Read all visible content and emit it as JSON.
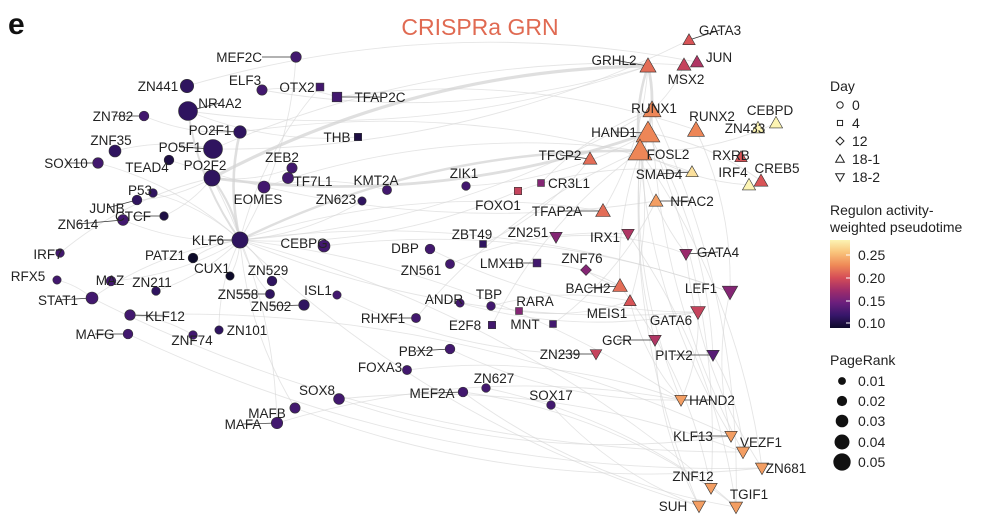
{
  "panel_letter": "e",
  "title": "CRISPRa GRN",
  "colors": {
    "title": "#e06a52",
    "edge": "#d4d4d4",
    "node_stroke": "#333333"
  },
  "legend": {
    "day": {
      "title": "Day",
      "items": [
        {
          "label": "0",
          "shape": "circle"
        },
        {
          "label": "4",
          "shape": "square"
        },
        {
          "label": "12",
          "shape": "diamond"
        },
        {
          "label": "18-1",
          "shape": "triangle-up"
        },
        {
          "label": "18-2",
          "shape": "triangle-down"
        }
      ]
    },
    "activity": {
      "title_line1": "Regulon activity-",
      "title_line2": "weighted pseudotime",
      "ticks": [
        "0.25",
        "0.20",
        "0.15",
        "0.10"
      ],
      "colormap": [
        "#fcf4b3",
        "#f9c37a",
        "#ef8a57",
        "#d54d57",
        "#a02d6a",
        "#6b1f7d",
        "#36166a",
        "#0d0a2a"
      ]
    },
    "pagerank": {
      "title": "PageRank",
      "items": [
        "0.01",
        "0.02",
        "0.03",
        "0.04",
        "0.05"
      ]
    }
  },
  "nodes": [
    {
      "label": "MEF2C",
      "shape": "circle",
      "value": 0.13,
      "pagerank": 0.015
    },
    {
      "label": "ELF3",
      "shape": "circle",
      "value": 0.13,
      "pagerank": 0.014
    },
    {
      "label": "OTX2",
      "shape": "square",
      "value": 0.13,
      "pagerank": 0.012
    },
    {
      "label": "TFAP2C",
      "shape": "square",
      "value": 0.13,
      "pagerank": 0.02
    },
    {
      "label": "ZN441",
      "shape": "circle",
      "value": 0.12,
      "pagerank": 0.025
    },
    {
      "label": "NR4A2",
      "shape": "circle",
      "value": 0.12,
      "pagerank": 0.045
    },
    {
      "label": "ZN782",
      "shape": "circle",
      "value": 0.13,
      "pagerank": 0.012
    },
    {
      "label": "PO2F1",
      "shape": "circle",
      "value": 0.12,
      "pagerank": 0.022
    },
    {
      "label": "PO5F1",
      "shape": "circle",
      "value": 0.12,
      "pagerank": 0.045
    },
    {
      "label": "ZNF35",
      "shape": "circle",
      "value": 0.12,
      "pagerank": 0.02
    },
    {
      "label": "PO2F2",
      "shape": "circle",
      "value": 0.12,
      "pagerank": 0.035
    },
    {
      "label": "SOX10",
      "shape": "circle",
      "value": 0.13,
      "pagerank": 0.015
    },
    {
      "label": "TEAD4",
      "shape": "circle",
      "value": 0.11,
      "pagerank": 0.012
    },
    {
      "label": "THB",
      "shape": "square",
      "value": 0.11,
      "pagerank": 0.01
    },
    {
      "label": "ZEB2",
      "shape": "circle",
      "value": 0.13,
      "pagerank": 0.014
    },
    {
      "label": "TF7L1",
      "shape": "circle",
      "value": 0.13,
      "pagerank": 0.017
    },
    {
      "label": "P53",
      "shape": "circle",
      "value": 0.12,
      "pagerank": 0.008
    },
    {
      "label": "EOMES",
      "shape": "circle",
      "value": 0.13,
      "pagerank": 0.02
    },
    {
      "label": "KMT2A",
      "shape": "circle",
      "value": 0.13,
      "pagerank": 0.01
    },
    {
      "label": "ZN623",
      "shape": "circle",
      "value": 0.12,
      "pagerank": 0.007
    },
    {
      "label": "JUNB",
      "shape": "circle",
      "value": 0.12,
      "pagerank": 0.012
    },
    {
      "label": "ZN614",
      "shape": "circle",
      "value": 0.13,
      "pagerank": 0.016
    },
    {
      "label": "CTCF",
      "shape": "circle",
      "value": 0.11,
      "pagerank": 0.008
    },
    {
      "label": "ZIK1",
      "shape": "circle",
      "value": 0.13,
      "pagerank": 0.008
    },
    {
      "label": "FOXO1",
      "shape": "square",
      "value": 0.19,
      "pagerank": 0.01
    },
    {
      "label": "CR3L1",
      "shape": "square",
      "value": 0.16,
      "pagerank": 0.008
    },
    {
      "label": "TFCP2",
      "shape": "triangle-up",
      "value": 0.21,
      "pagerank": 0.014
    },
    {
      "label": "KLF6",
      "shape": "circle",
      "value": 0.12,
      "pagerank": 0.035
    },
    {
      "label": "IRF7",
      "shape": "circle",
      "value": 0.13,
      "pagerank": 0.008
    },
    {
      "label": "PATZ1",
      "shape": "circle",
      "value": 0.1,
      "pagerank": 0.012
    },
    {
      "label": "CEBPG",
      "shape": "circle",
      "value": 0.13,
      "pagerank": 0.02
    },
    {
      "label": "DBP",
      "shape": "circle",
      "value": 0.13,
      "pagerank": 0.012
    },
    {
      "label": "ZBT49",
      "shape": "square",
      "value": 0.12,
      "pagerank": 0.008
    },
    {
      "label": "ZN251",
      "shape": "triangle-down",
      "value": 0.16,
      "pagerank": 0.01
    },
    {
      "label": "TFAP2A",
      "shape": "triangle-up",
      "value": 0.21,
      "pagerank": 0.016
    },
    {
      "label": "RFX5",
      "shape": "circle",
      "value": 0.13,
      "pagerank": 0.007
    },
    {
      "label": "CUX1",
      "shape": "circle",
      "value": 0.1,
      "pagerank": 0.007
    },
    {
      "label": "ZN529",
      "shape": "circle",
      "value": 0.12,
      "pagerank": 0.012
    },
    {
      "label": "ZN561",
      "shape": "circle",
      "value": 0.13,
      "pagerank": 0.01
    },
    {
      "label": "LMX1B",
      "shape": "square",
      "value": 0.13,
      "pagerank": 0.012
    },
    {
      "label": "ZNF76",
      "shape": "diamond",
      "value": 0.16,
      "pagerank": 0.008
    },
    {
      "label": "IRX1",
      "shape": "triangle-down",
      "value": 0.18,
      "pagerank": 0.01
    },
    {
      "label": "GATA4",
      "shape": "triangle-down",
      "value": 0.17,
      "pagerank": 0.01
    },
    {
      "label": "MAZ",
      "shape": "circle",
      "value": 0.13,
      "pagerank": 0.012
    },
    {
      "label": "ZN211",
      "shape": "circle",
      "value": 0.12,
      "pagerank": 0.008
    },
    {
      "label": "STAT1",
      "shape": "circle",
      "value": 0.13,
      "pagerank": 0.02
    },
    {
      "label": "ZN558",
      "shape": "circle",
      "value": 0.12,
      "pagerank": 0.01
    },
    {
      "label": "ISL1",
      "shape": "circle",
      "value": 0.13,
      "pagerank": 0.007
    },
    {
      "label": "TBP",
      "shape": "circle",
      "value": 0.13,
      "pagerank": 0.008
    },
    {
      "label": "RARA",
      "shape": "square",
      "value": 0.16,
      "pagerank": 0.008
    },
    {
      "label": "BACH2",
      "shape": "triangle-up",
      "value": 0.21,
      "pagerank": 0.016
    },
    {
      "label": "LEF1",
      "shape": "triangle-down",
      "value": 0.16,
      "pagerank": 0.018
    },
    {
      "label": "KLF12",
      "shape": "circle",
      "value": 0.13,
      "pagerank": 0.015
    },
    {
      "label": "ZN502",
      "shape": "circle",
      "value": 0.12,
      "pagerank": 0.015
    },
    {
      "label": "RHXF1",
      "shape": "circle",
      "value": 0.13,
      "pagerank": 0.01
    },
    {
      "label": "ANDR",
      "shape": "circle",
      "value": 0.13,
      "pagerank": 0.007
    },
    {
      "label": "MEIS1",
      "shape": "triangle-up",
      "value": 0.2,
      "pagerank": 0.01
    },
    {
      "label": "MAFG",
      "shape": "circle",
      "value": 0.13,
      "pagerank": 0.012
    },
    {
      "label": "ZN101",
      "shape": "circle",
      "value": 0.12,
      "pagerank": 0.007
    },
    {
      "label": "E2F8",
      "shape": "square",
      "value": 0.13,
      "pagerank": 0.01
    },
    {
      "label": "MNT",
      "shape": "square",
      "value": 0.13,
      "pagerank": 0.008
    },
    {
      "label": "GATA6",
      "shape": "triangle-down",
      "value": 0.19,
      "pagerank": 0.016
    },
    {
      "label": "ZNF74",
      "shape": "circle",
      "value": 0.13,
      "pagerank": 0.008
    },
    {
      "label": "GCR",
      "shape": "triangle-down",
      "value": 0.18,
      "pagerank": 0.01
    },
    {
      "label": "PITX2",
      "shape": "triangle-down",
      "value": 0.14,
      "pagerank": 0.01
    },
    {
      "label": "PBX2",
      "shape": "circle",
      "value": 0.13,
      "pagerank": 0.012
    },
    {
      "label": "ZN239",
      "shape": "triangle-down",
      "value": 0.19,
      "pagerank": 0.008
    },
    {
      "label": "FOXA3",
      "shape": "circle",
      "value": 0.13,
      "pagerank": 0.01
    },
    {
      "label": "ZN627",
      "shape": "circle",
      "value": 0.13,
      "pagerank": 0.008
    },
    {
      "label": "SOX8",
      "shape": "circle",
      "value": 0.13,
      "pagerank": 0.016
    },
    {
      "label": "MEF2A",
      "shape": "circle",
      "value": 0.13,
      "pagerank": 0.012
    },
    {
      "label": "SOX17",
      "shape": "circle",
      "value": 0.13,
      "pagerank": 0.008
    },
    {
      "label": "MAFB",
      "shape": "circle",
      "value": 0.13,
      "pagerank": 0.014
    },
    {
      "label": "HAND2",
      "shape": "triangle-down",
      "value": 0.23,
      "pagerank": 0.01
    },
    {
      "label": "MAFA",
      "shape": "circle",
      "value": 0.13,
      "pagerank": 0.018
    },
    {
      "label": "KLF13",
      "shape": "triangle-down",
      "value": 0.23,
      "pagerank": 0.01
    },
    {
      "label": "VEZF1",
      "shape": "triangle-down",
      "value": 0.23,
      "pagerank": 0.012
    },
    {
      "label": "ZN681",
      "shape": "triangle-down",
      "value": 0.23,
      "pagerank": 0.012
    },
    {
      "label": "ZNF12",
      "shape": "triangle-down",
      "value": 0.23,
      "pagerank": 0.01
    },
    {
      "label": "TGIF1",
      "shape": "triangle-down",
      "value": 0.23,
      "pagerank": 0.012
    },
    {
      "label": "SUH",
      "shape": "triangle-down",
      "value": 0.23,
      "pagerank": 0.012
    },
    {
      "label": "GATA3",
      "shape": "triangle-up",
      "value": 0.2,
      "pagerank": 0.01
    },
    {
      "label": "JUN",
      "shape": "triangle-up",
      "value": 0.18,
      "pagerank": 0.012
    },
    {
      "label": "GRHL2",
      "shape": "triangle-up",
      "value": 0.21,
      "pagerank": 0.02
    },
    {
      "label": "MSX2",
      "shape": "triangle-up",
      "value": 0.19,
      "pagerank": 0.014
    },
    {
      "label": "RUNX1",
      "shape": "triangle-up",
      "value": 0.22,
      "pagerank": 0.025
    },
    {
      "label": "RUNX2",
      "shape": "triangle-up",
      "value": 0.22,
      "pagerank": 0.022
    },
    {
      "label": "HAND1",
      "shape": "triangle-up",
      "value": 0.22,
      "pagerank": 0.04
    },
    {
      "label": "FOSL2",
      "shape": "triangle-up",
      "value": 0.22,
      "pagerank": 0.04
    },
    {
      "label": "CEBPD",
      "shape": "triangle-up",
      "value": 0.27,
      "pagerank": 0.012
    },
    {
      "label": "ZN433",
      "shape": "triangle-up",
      "value": 0.27,
      "pagerank": 0.012
    },
    {
      "label": "RXRB",
      "shape": "triangle-up",
      "value": 0.2,
      "pagerank": 0.01
    },
    {
      "label": "SMAD4",
      "shape": "triangle-up",
      "value": 0.26,
      "pagerank": 0.01
    },
    {
      "label": "IRF4",
      "shape": "triangle-up",
      "value": 0.27,
      "pagerank": 0.012
    },
    {
      "label": "CREB5",
      "shape": "triangle-up",
      "value": 0.2,
      "pagerank": 0.014
    },
    {
      "label": "NFAC2",
      "shape": "triangle-up",
      "value": 0.23,
      "pagerank": 0.014
    }
  ]
}
